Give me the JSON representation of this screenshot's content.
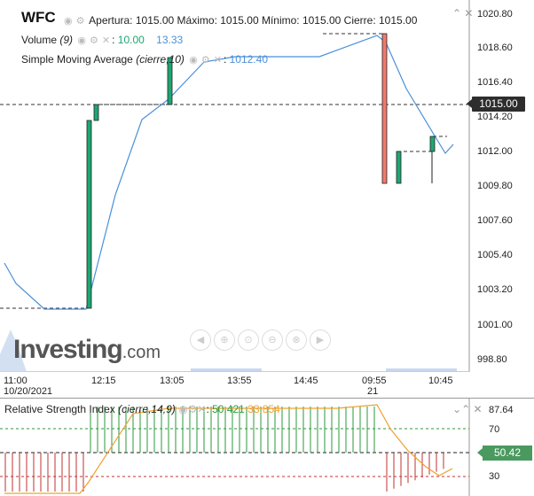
{
  "header": {
    "ticker": "WFC",
    "ohlc_text": "Apertura: 1015.00 Máximo: 1015.00 Mínimo: 1015.00 Cierre: 1015.00"
  },
  "volume": {
    "label": "Volume",
    "param": "(9)",
    "val1": "10.00",
    "val2": "13.33"
  },
  "sma": {
    "label": "Simple Moving Average",
    "param": "(cierre,10)",
    "value": "1012.40"
  },
  "price_axis": [
    "1020.80",
    "1018.60",
    "1016.40",
    "1014.20",
    "1012.00",
    "1009.80",
    "1007.60",
    "1005.40",
    "1003.20",
    "1001.00",
    "998.80"
  ],
  "current_price": "1015.00",
  "time_axis": [
    {
      "label": "11:00",
      "sub": "10/20/2021"
    },
    {
      "label": "12:15",
      "sub": ""
    },
    {
      "label": "13:05",
      "sub": ""
    },
    {
      "label": "13:55",
      "sub": ""
    },
    {
      "label": "14:45",
      "sub": ""
    },
    {
      "label": "09:55",
      "sub": "21"
    },
    {
      "label": "10:45",
      "sub": ""
    }
  ],
  "watermark": {
    "brand": "Investing",
    "suffix": ".com"
  },
  "rsi": {
    "label": "Relative Strength Index",
    "param": "(cierre,14,9)",
    "value": "50.421",
    "signal": "33.854",
    "axis": [
      "87.64",
      "70",
      "30"
    ],
    "current": "50.42"
  },
  "colors": {
    "up": "#1ea672",
    "down": "#f07a6a",
    "sma": "#4a90d9",
    "rsi_signal": "#f0a030"
  }
}
